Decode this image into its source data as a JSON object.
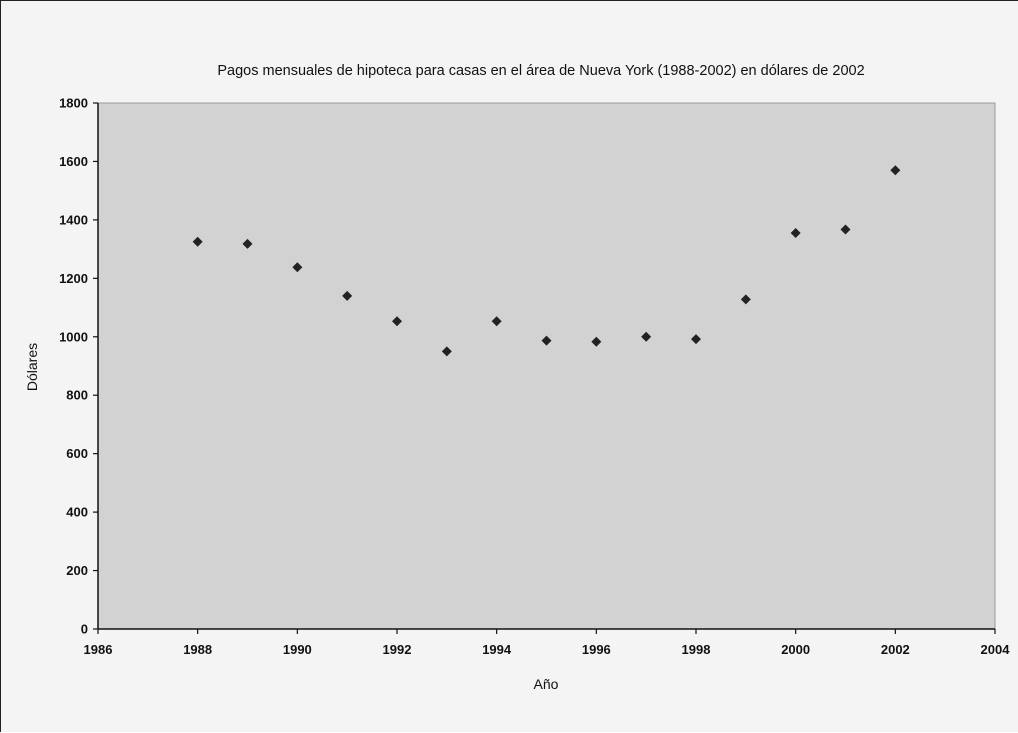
{
  "chart_data": {
    "type": "scatter",
    "title": "Pagos mensuales de hipoteca para casas en el área de Nueva York (1988-2002) en dólares de 2002",
    "xlabel": "Año",
    "ylabel": "Dólares",
    "xlim": [
      1986,
      2004
    ],
    "ylim": [
      0,
      1800
    ],
    "xticks": [
      1986,
      1988,
      1990,
      1992,
      1994,
      1996,
      1998,
      2000,
      2002,
      2004
    ],
    "yticks": [
      0,
      200,
      400,
      600,
      800,
      1000,
      1200,
      1400,
      1600,
      1800
    ],
    "grid": false,
    "legend": "none",
    "colors": {
      "plot_background": "#d2d2d2",
      "chart_background": "#f4f4f4",
      "marker": "#222222",
      "axis": "#111111"
    },
    "marker": "diamond",
    "points": [
      {
        "x": 1988,
        "y": 1325
      },
      {
        "x": 1989,
        "y": 1318
      },
      {
        "x": 1990,
        "y": 1238
      },
      {
        "x": 1991,
        "y": 1140
      },
      {
        "x": 1992,
        "y": 1053
      },
      {
        "x": 1993,
        "y": 950
      },
      {
        "x": 1994,
        "y": 1053
      },
      {
        "x": 1995,
        "y": 987
      },
      {
        "x": 1996,
        "y": 983
      },
      {
        "x": 1997,
        "y": 1000
      },
      {
        "x": 1998,
        "y": 992
      },
      {
        "x": 1999,
        "y": 1128
      },
      {
        "x": 2000,
        "y": 1355
      },
      {
        "x": 2001,
        "y": 1367
      },
      {
        "x": 2002,
        "y": 1570
      }
    ]
  }
}
